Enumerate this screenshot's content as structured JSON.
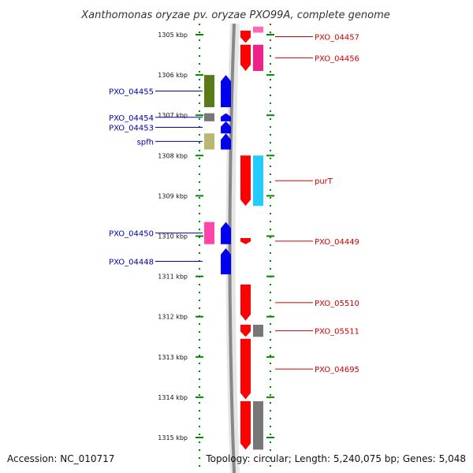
{
  "title": "Xanthomonas oryzae pv. oryzae PXO99A, complete genome",
  "footer": {
    "accession": "Accession: NC_010717",
    "topology": "Topology: circular; Length: 5,240,075 bp; Genes: 5,048"
  },
  "colors": {
    "forward_strand": "#ff0000",
    "reverse_strand": "#0000ee",
    "left_label": "#0000aa",
    "right_label": "#cc0000",
    "ticks": "#008800",
    "backbone": "#888888"
  },
  "axis": {
    "unit": "kbp",
    "start_kbp": 1304.8,
    "end_kbp": 1315.3,
    "ticks": [
      {
        "kbp": 1305,
        "label": "1305 kbp"
      },
      {
        "kbp": 1306,
        "label": "1306 kbp"
      },
      {
        "kbp": 1307,
        "label": "1307 kbp"
      },
      {
        "kbp": 1308,
        "label": "1308 kbp"
      },
      {
        "kbp": 1309,
        "label": "1309 kbp"
      },
      {
        "kbp": 1310,
        "label": "1310 kbp"
      },
      {
        "kbp": 1311,
        "label": "1311 kbp"
      },
      {
        "kbp": 1312,
        "label": "1312 kbp"
      },
      {
        "kbp": 1313,
        "label": "1313 kbp"
      },
      {
        "kbp": 1314,
        "label": "1314 kbp"
      },
      {
        "kbp": 1315,
        "label": "1315 kbp"
      }
    ]
  },
  "features": [
    {
      "label": "PXO_04457",
      "strand": "+",
      "start_kbp": 1304.9,
      "end_kbp": 1305.2,
      "cog_color": "#ff69b4",
      "cog_start_kbp": 1304.8,
      "cog_end_kbp": 1304.95
    },
    {
      "label": "PXO_04456",
      "strand": "+",
      "start_kbp": 1305.25,
      "end_kbp": 1305.9,
      "cog_color": "#ee2288"
    },
    {
      "label": "PXO_04455",
      "strand": "-",
      "start_kbp": 1306.0,
      "end_kbp": 1306.8,
      "cog_color": "#5a7a1a"
    },
    {
      "label": "PXO_04454",
      "strand": "-",
      "start_kbp": 1306.95,
      "end_kbp": 1307.15,
      "cog_color": "#777777"
    },
    {
      "label": "PXO_04453",
      "strand": "-",
      "start_kbp": 1307.15,
      "end_kbp": 1307.45,
      "cog_color": null
    },
    {
      "label": "spfh",
      "strand": "-",
      "start_kbp": 1307.45,
      "end_kbp": 1307.85,
      "cog_color": "#b8b870"
    },
    {
      "label": "purT",
      "strand": "+",
      "start_kbp": 1308.0,
      "end_kbp": 1309.25,
      "cog_color": "#22ccff"
    },
    {
      "label": "PXO_04450",
      "strand": "-",
      "start_kbp": 1309.65,
      "end_kbp": 1310.2,
      "cog_color": "#ff44aa"
    },
    {
      "label": "PXO_04449",
      "strand": "+",
      "start_kbp": 1310.05,
      "end_kbp": 1310.2,
      "cog_color": null
    },
    {
      "label": "PXO_04448",
      "strand": "-",
      "start_kbp": 1310.3,
      "end_kbp": 1310.95,
      "cog_color": null
    },
    {
      "label": "PXO_05510",
      "strand": "+",
      "start_kbp": 1311.2,
      "end_kbp": 1312.1,
      "cog_color": null
    },
    {
      "label": "PXO_05511",
      "strand": "+",
      "start_kbp": 1312.2,
      "end_kbp": 1312.5,
      "cog_color": "#777777"
    },
    {
      "label": "PXO_04695",
      "strand": "+",
      "start_kbp": 1312.55,
      "end_kbp": 1314.05,
      "cog_color": null
    },
    {
      "label": "",
      "strand": "+",
      "start_kbp": 1314.1,
      "end_kbp": 1315.3,
      "cog_color": "#777777"
    }
  ]
}
